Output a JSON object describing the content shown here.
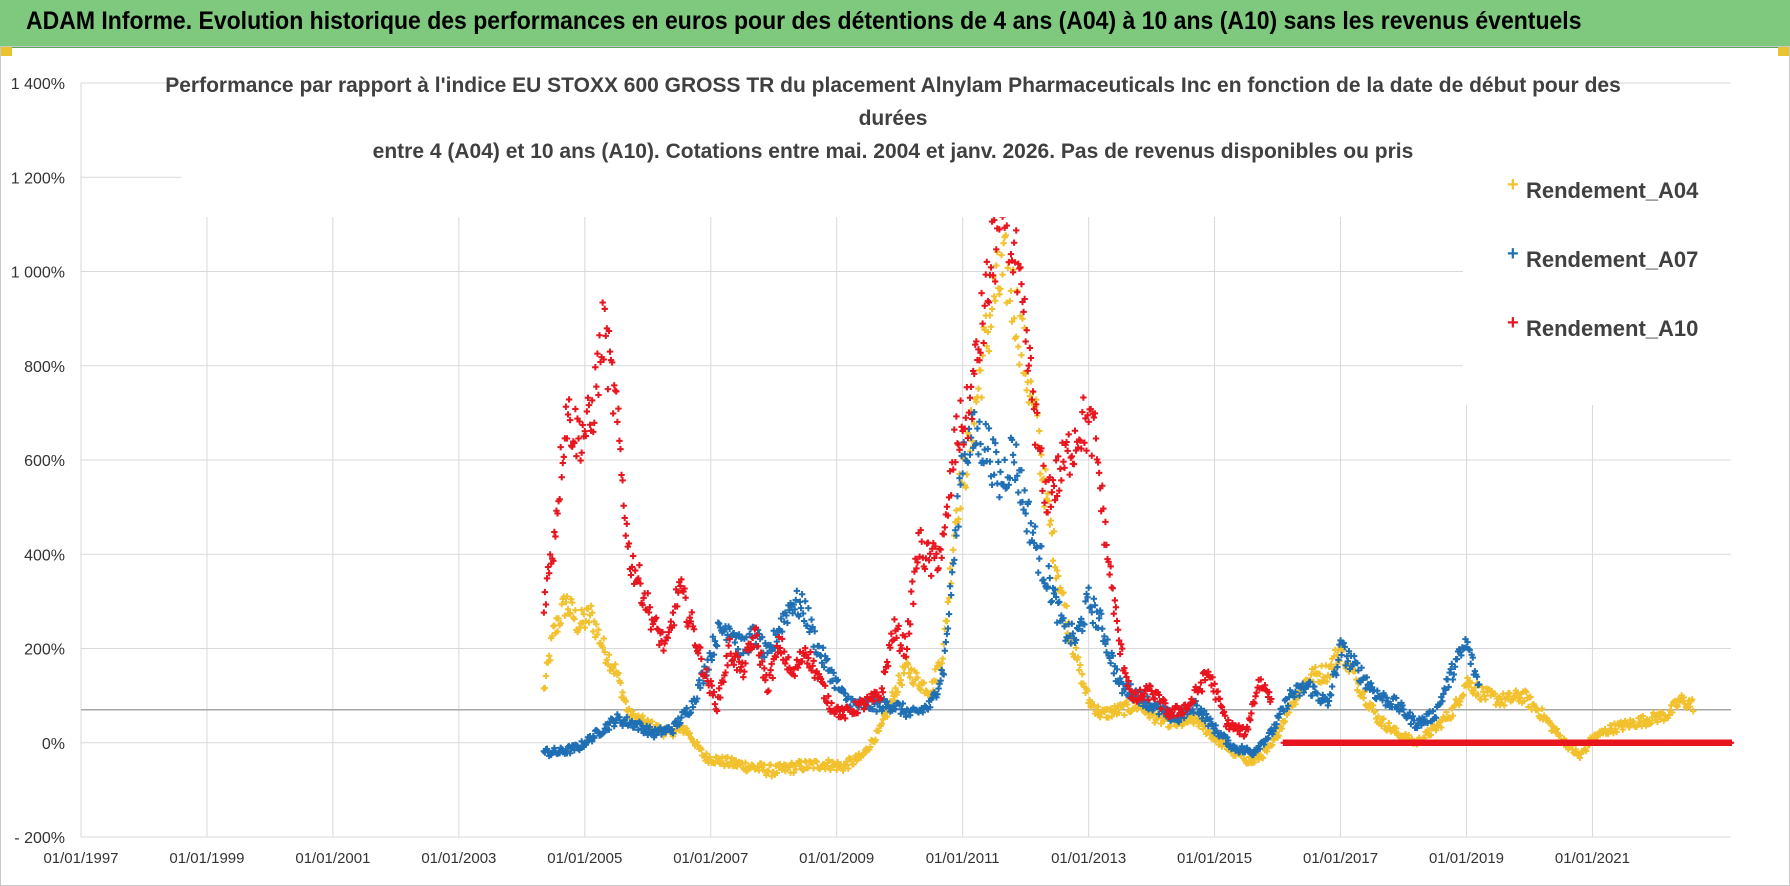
{
  "header": {
    "title": "ADAM Informe. Evolution historique des performances en euros pour des détentions de 4 ans (A04) à 10 ans (A10) sans les revenus éventuels"
  },
  "colors": {
    "header_bg": "#7fc97f",
    "A04": "#f2c12e",
    "A07": "#1f6fb4",
    "A10": "#e8141e",
    "grid": "#d9d9d9"
  },
  "chart_data": {
    "type": "scatter",
    "title_lines": [
      "Performance par rapport à l'indice EU STOXX 600 GROSS TR  du placement Alnylam Pharmaceuticals Inc en fonction de la date de début pour des",
      "durées",
      "entre 4 (A04) et 10 ans (A10). Cotations entre mai. 2004 et janv. 2026. Pas de revenus disponibles ou pris"
    ],
    "y_tick_labels": [
      "1 400%",
      "1 200%",
      "1 000%",
      "800%",
      "600%",
      "400%",
      "200%",
      "0%",
      "- 200%"
    ],
    "y_ticks": [
      1400,
      1200,
      1000,
      800,
      600,
      400,
      200,
      0,
      -200
    ],
    "ylim": [
      -200,
      1400
    ],
    "x_tick_labels": [
      "01/01/1997",
      "01/01/1999",
      "01/01/2001",
      "01/01/2003",
      "01/01/2005",
      "01/01/2007",
      "01/01/2009",
      "01/01/2011",
      "01/01/2013",
      "01/01/2015",
      "01/01/2017",
      "01/01/2019",
      "01/01/2021"
    ],
    "x_ticks": [
      1997,
      1999,
      2001,
      2003,
      2005,
      2007,
      2009,
      2011,
      2013,
      2015,
      2017,
      2019,
      2021
    ],
    "xlim": [
      1997,
      2023.2
    ],
    "reference_line_y": 70,
    "legend": {
      "position": "top-right",
      "entries": [
        "Rendement_A04",
        "Rendement_A07",
        "Rendement_A10"
      ]
    },
    "series": [
      {
        "name": "Rendement_A04",
        "color": "#f2c12e",
        "points": [
          [
            2004.35,
            110
          ],
          [
            2004.5,
            230
          ],
          [
            2004.7,
            300
          ],
          [
            2004.9,
            250
          ],
          [
            2005.1,
            270
          ],
          [
            2005.3,
            200
          ],
          [
            2005.5,
            150
          ],
          [
            2005.7,
            60
          ],
          [
            2006.0,
            40
          ],
          [
            2006.3,
            20
          ],
          [
            2006.6,
            30
          ],
          [
            2006.9,
            -30
          ],
          [
            2007.2,
            -40
          ],
          [
            2007.6,
            -50
          ],
          [
            2008.0,
            -60
          ],
          [
            2008.4,
            -50
          ],
          [
            2008.8,
            -45
          ],
          [
            2009.1,
            -50
          ],
          [
            2009.4,
            -30
          ],
          [
            2009.7,
            30
          ],
          [
            2009.9,
            100
          ],
          [
            2010.1,
            160
          ],
          [
            2010.3,
            130
          ],
          [
            2010.5,
            110
          ],
          [
            2010.7,
            200
          ],
          [
            2010.9,
            500
          ],
          [
            2011.1,
            620
          ],
          [
            2011.3,
            800
          ],
          [
            2011.5,
            950
          ],
          [
            2011.7,
            1000
          ],
          [
            2011.85,
            920
          ],
          [
            2012.0,
            800
          ],
          [
            2012.2,
            650
          ],
          [
            2012.4,
            450
          ],
          [
            2012.6,
            300
          ],
          [
            2012.8,
            180
          ],
          [
            2013.0,
            90
          ],
          [
            2013.2,
            60
          ],
          [
            2013.5,
            70
          ],
          [
            2013.8,
            80
          ],
          [
            2014.1,
            50
          ],
          [
            2014.4,
            40
          ],
          [
            2014.7,
            50
          ],
          [
            2015.0,
            10
          ],
          [
            2015.3,
            -20
          ],
          [
            2015.6,
            -40
          ],
          [
            2015.9,
            -10
          ],
          [
            2016.2,
            80
          ],
          [
            2016.5,
            140
          ],
          [
            2016.8,
            150
          ],
          [
            2017.0,
            200
          ],
          [
            2017.3,
            120
          ],
          [
            2017.6,
            50
          ],
          [
            2017.9,
            20
          ],
          [
            2018.2,
            0
          ],
          [
            2018.5,
            30
          ],
          [
            2018.8,
            70
          ],
          [
            2019.0,
            130
          ],
          [
            2019.3,
            100
          ],
          [
            2019.6,
            90
          ],
          [
            2019.9,
            100
          ],
          [
            2020.2,
            60
          ],
          [
            2020.5,
            10
          ],
          [
            2020.8,
            -30
          ],
          [
            2021.0,
            10
          ],
          [
            2021.3,
            30
          ],
          [
            2021.6,
            40
          ],
          [
            2021.9,
            50
          ],
          [
            2022.2,
            60
          ],
          [
            2022.4,
            90
          ],
          [
            2022.6,
            80
          ]
        ]
      },
      {
        "name": "Rendement_A07",
        "color": "#1f6fb4",
        "points": [
          [
            2004.35,
            -20
          ],
          [
            2004.6,
            -20
          ],
          [
            2004.9,
            -10
          ],
          [
            2005.2,
            20
          ],
          [
            2005.5,
            50
          ],
          [
            2005.8,
            40
          ],
          [
            2006.1,
            20
          ],
          [
            2006.4,
            30
          ],
          [
            2006.7,
            80
          ],
          [
            2006.9,
            150
          ],
          [
            2007.1,
            230
          ],
          [
            2007.3,
            250
          ],
          [
            2007.5,
            200
          ],
          [
            2007.7,
            230
          ],
          [
            2007.9,
            180
          ],
          [
            2008.1,
            250
          ],
          [
            2008.3,
            300
          ],
          [
            2008.5,
            280
          ],
          [
            2008.7,
            200
          ],
          [
            2008.9,
            150
          ],
          [
            2009.1,
            100
          ],
          [
            2009.3,
            80
          ],
          [
            2009.6,
            80
          ],
          [
            2009.9,
            80
          ],
          [
            2010.2,
            60
          ],
          [
            2010.5,
            80
          ],
          [
            2010.7,
            160
          ],
          [
            2010.9,
            450
          ],
          [
            2011.0,
            620
          ],
          [
            2011.2,
            650
          ],
          [
            2011.4,
            630
          ],
          [
            2011.6,
            550
          ],
          [
            2011.8,
            620
          ],
          [
            2012.0,
            500
          ],
          [
            2012.2,
            400
          ],
          [
            2012.4,
            330
          ],
          [
            2012.6,
            240
          ],
          [
            2012.8,
            220
          ],
          [
            2013.0,
            300
          ],
          [
            2013.2,
            250
          ],
          [
            2013.5,
            120
          ],
          [
            2013.8,
            100
          ],
          [
            2014.1,
            70
          ],
          [
            2014.4,
            50
          ],
          [
            2014.7,
            80
          ],
          [
            2015.0,
            30
          ],
          [
            2015.3,
            -10
          ],
          [
            2015.6,
            -20
          ],
          [
            2015.9,
            20
          ],
          [
            2016.2,
            100
          ],
          [
            2016.5,
            120
          ],
          [
            2016.8,
            80
          ],
          [
            2017.0,
            200
          ],
          [
            2017.3,
            150
          ],
          [
            2017.6,
            100
          ],
          [
            2017.9,
            80
          ],
          [
            2018.2,
            40
          ],
          [
            2018.5,
            60
          ],
          [
            2018.8,
            160
          ],
          [
            2019.0,
            210
          ],
          [
            2019.2,
            120
          ]
        ]
      },
      {
        "name": "Rendement_A10",
        "color": "#e8141e",
        "points": [
          [
            2004.35,
            300
          ],
          [
            2004.5,
            420
          ],
          [
            2004.7,
            700
          ],
          [
            2004.9,
            650
          ],
          [
            2005.1,
            680
          ],
          [
            2005.3,
            880
          ],
          [
            2005.5,
            700
          ],
          [
            2005.7,
            400
          ],
          [
            2005.9,
            330
          ],
          [
            2006.1,
            250
          ],
          [
            2006.3,
            200
          ],
          [
            2006.5,
            330
          ],
          [
            2006.7,
            250
          ],
          [
            2006.9,
            150
          ],
          [
            2007.1,
            80
          ],
          [
            2007.3,
            200
          ],
          [
            2007.5,
            150
          ],
          [
            2007.7,
            230
          ],
          [
            2007.9,
            120
          ],
          [
            2008.1,
            210
          ],
          [
            2008.3,
            140
          ],
          [
            2008.5,
            200
          ],
          [
            2008.7,
            140
          ],
          [
            2008.9,
            80
          ],
          [
            2009.1,
            60
          ],
          [
            2009.4,
            80
          ],
          [
            2009.7,
            100
          ],
          [
            2009.9,
            240
          ],
          [
            2010.1,
            200
          ],
          [
            2010.3,
            420
          ],
          [
            2010.5,
            380
          ],
          [
            2010.7,
            420
          ],
          [
            2010.9,
            650
          ],
          [
            2011.1,
            700
          ],
          [
            2011.3,
            880
          ],
          [
            2011.5,
            1050
          ],
          [
            2011.7,
            1150
          ],
          [
            2011.9,
            950
          ],
          [
            2012.1,
            750
          ],
          [
            2012.3,
            520
          ],
          [
            2012.5,
            560
          ],
          [
            2012.7,
            620
          ],
          [
            2012.9,
            680
          ],
          [
            2013.1,
            650
          ],
          [
            2013.3,
            400
          ],
          [
            2013.5,
            200
          ],
          [
            2013.7,
            90
          ],
          [
            2014.0,
            110
          ],
          [
            2014.3,
            60
          ],
          [
            2014.6,
            80
          ],
          [
            2014.9,
            150
          ],
          [
            2015.2,
            40
          ],
          [
            2015.5,
            20
          ],
          [
            2015.7,
            130
          ],
          [
            2015.9,
            100
          ]
        ]
      }
    ],
    "a10_zero_segment": {
      "x_start": 2016.1,
      "x_end": 2023.2,
      "y": 0
    }
  }
}
